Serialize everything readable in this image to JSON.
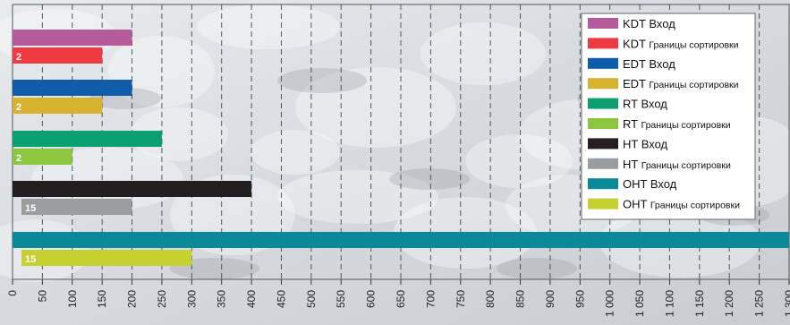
{
  "chart_data": {
    "type": "bar",
    "orientation": "horizontal",
    "title": "",
    "xlabel": "",
    "ylabel": "",
    "xlim": [
      0,
      1300
    ],
    "ticks": [
      {
        "value": 0,
        "label": "0"
      },
      {
        "value": 50,
        "label": "50"
      },
      {
        "value": 100,
        "label": "100"
      },
      {
        "value": 150,
        "label": "150"
      },
      {
        "value": 200,
        "label": "200"
      },
      {
        "value": 250,
        "label": "250"
      },
      {
        "value": 300,
        "label": "300"
      },
      {
        "value": 350,
        "label": "350"
      },
      {
        "value": 400,
        "label": "400"
      },
      {
        "value": 450,
        "label": "450"
      },
      {
        "value": 500,
        "label": "500"
      },
      {
        "value": 550,
        "label": "550"
      },
      {
        "value": 600,
        "label": "600"
      },
      {
        "value": 650,
        "label": "650"
      },
      {
        "value": 700,
        "label": "700"
      },
      {
        "value": 750,
        "label": "750"
      },
      {
        "value": 800,
        "label": "800"
      },
      {
        "value": 850,
        "label": "850"
      },
      {
        "value": 900,
        "label": "900"
      },
      {
        "value": 950,
        "label": "950"
      },
      {
        "value": 1000,
        "label": "1 000"
      },
      {
        "value": 1050,
        "label": "1 050"
      },
      {
        "value": 1100,
        "label": "1 100"
      },
      {
        "value": 1150,
        "label": "1 150"
      },
      {
        "value": 1200,
        "label": "1 200"
      },
      {
        "value": 1250,
        "label": "1 250"
      },
      {
        "value": 1300,
        "label": "1 300"
      }
    ],
    "grid": true,
    "legend_position": "top-right",
    "groups": [
      {
        "series_names": [
          "KDT Вход",
          "KDT Границы сортировки"
        ],
        "values": [
          200,
          150
        ],
        "start_label": "2"
      },
      {
        "series_names": [
          "EDT Вход",
          "EDT Границы сортировки"
        ],
        "values": [
          200,
          150
        ],
        "start_label": "2"
      },
      {
        "series_names": [
          "RT Вход",
          "RT Границы сортировки"
        ],
        "values": [
          250,
          100
        ],
        "start_label": "2"
      },
      {
        "series_names": [
          "HT Вход",
          "HT Границы сортировки"
        ],
        "values": [
          400,
          200
        ],
        "start_label": "15"
      },
      {
        "series_names": [
          "OHT Вход",
          "OHT Границы сортировки"
        ],
        "values": [
          1300,
          300
        ],
        "start_label": "15"
      }
    ],
    "bar_starts": [
      [
        0,
        0
      ],
      [
        0,
        0
      ],
      [
        0,
        0
      ],
      [
        0,
        15
      ],
      [
        0,
        15
      ]
    ],
    "legend": [
      {
        "code": "KDT",
        "desc": "Вход",
        "color": "#B55A9B"
      },
      {
        "code": "KDT",
        "desc": "Границы сортировки",
        "color": "#EE3B43"
      },
      {
        "code": "EDT",
        "desc": "Вход",
        "color": "#0F5DAA"
      },
      {
        "code": "EDT",
        "desc": "Границы сортировки",
        "color": "#D8B22E"
      },
      {
        "code": "RT",
        "desc": "Вход",
        "color": "#0BA072"
      },
      {
        "code": "RT",
        "desc": "Границы сортировки",
        "color": "#8CC63F"
      },
      {
        "code": "HT",
        "desc": "Вход",
        "color": "#231F20"
      },
      {
        "code": "HT",
        "desc": "Границы сортировки",
        "color": "#9A9C9E"
      },
      {
        "code": "OHT",
        "desc": "Вход",
        "color": "#0A8A99"
      },
      {
        "code": "OHT",
        "desc": "Границы сортировки",
        "color": "#C6D030"
      }
    ]
  }
}
